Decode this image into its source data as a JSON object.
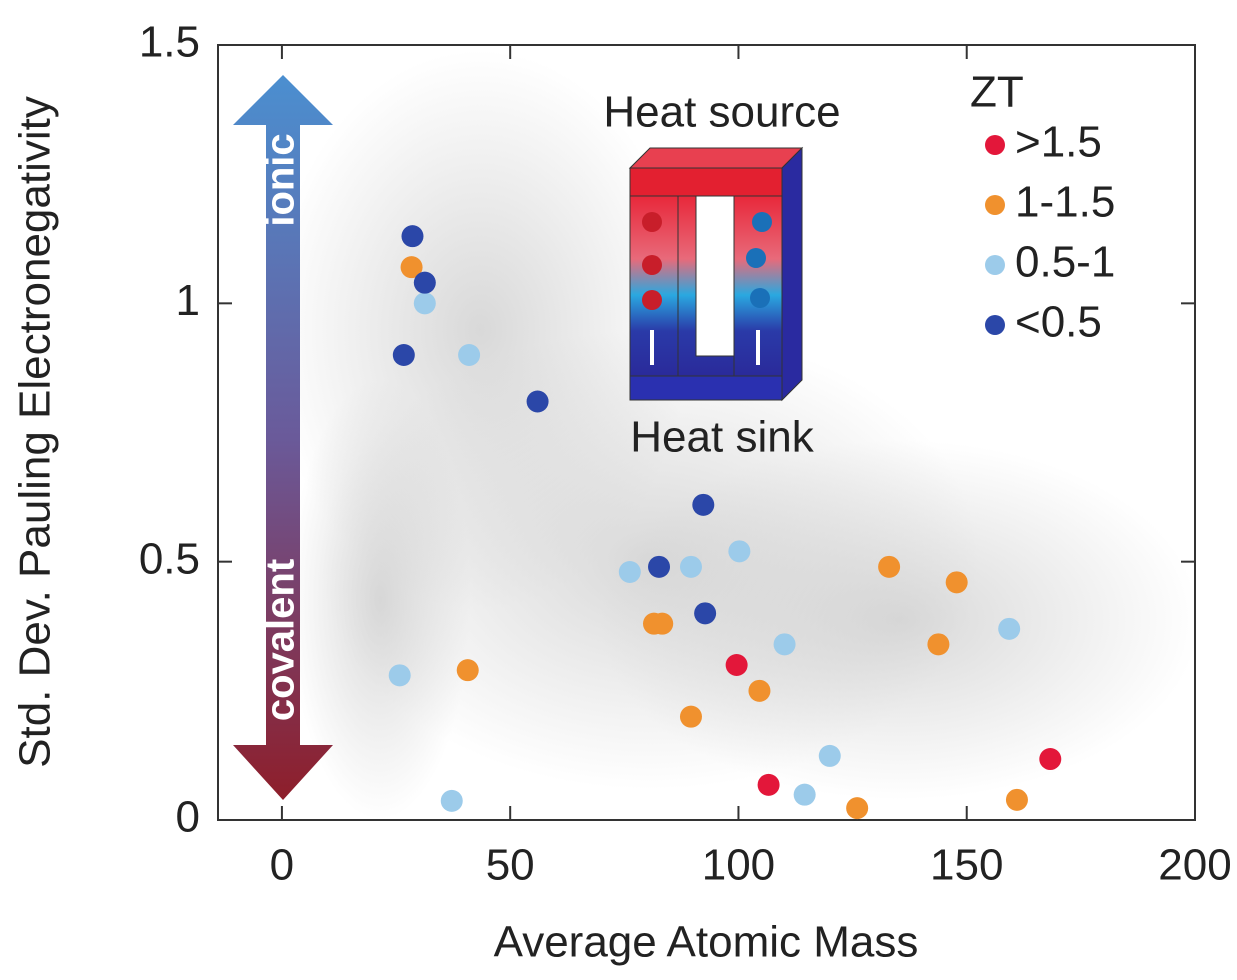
{
  "chart_data": {
    "type": "scatter",
    "xlabel": "Average Atomic Mass",
    "ylabel": "Std. Dev. Pauling Electronegativity",
    "xlim": [
      -14,
      200
    ],
    "ylim": [
      0,
      1.5
    ],
    "xticks": [
      0,
      50,
      100,
      150,
      200
    ],
    "yticks": [
      0,
      0.5,
      1,
      1.5
    ],
    "legend_title": "ZT",
    "legend_position": "upper right",
    "annotations": {
      "ionic": "ionic",
      "covalent": "covalent",
      "heat_source": "Heat source",
      "heat_sink": "Heat sink"
    },
    "series": [
      {
        "name": ">1.5",
        "color": "#e3173a",
        "x": [
          99.6,
          106.6,
          168.3
        ],
        "values": [
          0.3,
          0.068,
          0.118
        ]
      },
      {
        "name": "1-1.5",
        "color": "#f0912e",
        "x": [
          28.4,
          40.7,
          81.5,
          83.3,
          89.6,
          104.6,
          133,
          147.8,
          143.8,
          126,
          161
        ],
        "values": [
          1.07,
          0.29,
          0.38,
          0.38,
          0.2,
          0.25,
          0.49,
          0.46,
          0.34,
          0.023,
          0.039
        ]
      },
      {
        "name": "0.5-1",
        "color": "#9ccbea",
        "x": [
          31.3,
          41,
          25.8,
          37.2,
          76.2,
          89.6,
          100.2,
          110.1,
          120,
          114.5,
          159.3
        ],
        "values": [
          1.0,
          0.9,
          0.28,
          0.037,
          0.48,
          0.49,
          0.52,
          0.34,
          0.124,
          0.049,
          0.37
        ]
      },
      {
        "name": "<0.5",
        "color": "#2b47a8",
        "x": [
          28.6,
          31.3,
          26.7,
          56,
          92.3,
          82.6,
          92.7
        ],
        "values": [
          1.13,
          1.04,
          0.9,
          0.81,
          0.61,
          0.49,
          0.4
        ]
      }
    ]
  }
}
